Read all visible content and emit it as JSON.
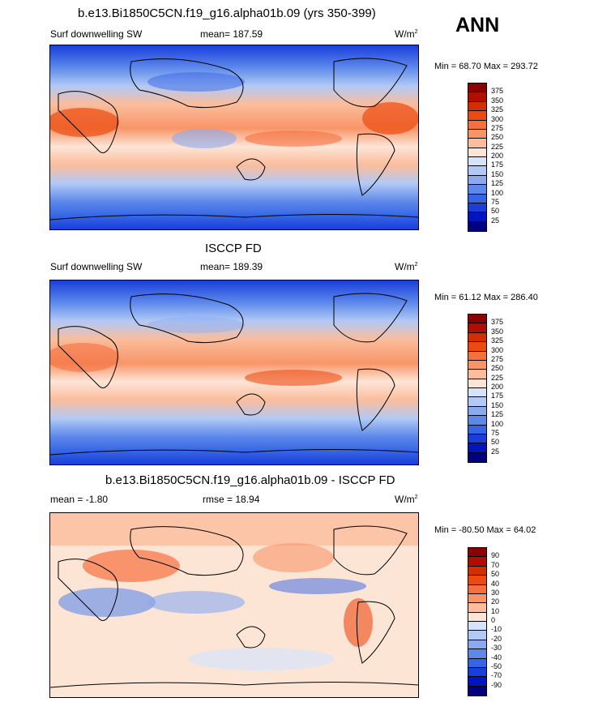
{
  "season": "ANN",
  "panels": [
    {
      "title": "b.e13.Bi1850C5CN.f19_g16.alpha01b.09 (yrs 350-399)",
      "left_label": "Surf downwelling SW",
      "center_label": "mean= 187.59",
      "units": "W/m",
      "units_sup": "2",
      "minmax": "Min =  68.70 Max = 293.72"
    },
    {
      "title": "ISCCP FD",
      "left_label": "Surf downwelling SW",
      "center_label": "mean= 189.39",
      "units": "W/m",
      "units_sup": "2",
      "minmax": "Min =  61.12 Max = 286.40"
    },
    {
      "title": "b.e13.Bi1850C5CN.f19_g16.alpha01b.09 - ISCCP FD",
      "left_label": "mean =  -1.80",
      "center_label": "rmse =  18.94",
      "units": "W/m",
      "units_sup": "2",
      "minmax": "Min = -80.50 Max =  64.02"
    }
  ],
  "colorbars": {
    "abs_levels": [
      "375",
      "350",
      "325",
      "300",
      "275",
      "250",
      "225",
      "200",
      "175",
      "150",
      "125",
      "100",
      "75",
      "50",
      "25"
    ],
    "abs_colors": [
      "#8b0000",
      "#b00e00",
      "#d42e00",
      "#ec4a10",
      "#f5703f",
      "#f89568",
      "#fbbd9c",
      "#fde5d6",
      "#d6e4fb",
      "#b1c9f6",
      "#8aaaf0",
      "#5c88ea",
      "#3564e4",
      "#1a3edc",
      "#0014c0",
      "#000080"
    ],
    "diff_levels": [
      "90",
      "70",
      "50",
      "40",
      "30",
      "20",
      "10",
      "0",
      "-10",
      "-20",
      "-30",
      "-40",
      "-50",
      "-70",
      "-90"
    ],
    "diff_colors": [
      "#8b0000",
      "#b00e00",
      "#d42e00",
      "#ec4a10",
      "#f5703f",
      "#f89568",
      "#fbbd9c",
      "#fde5d6",
      "#d6e4fb",
      "#b1c9f6",
      "#8aaaf0",
      "#5c88ea",
      "#3564e4",
      "#1a3edc",
      "#0014c0",
      "#000080"
    ]
  }
}
